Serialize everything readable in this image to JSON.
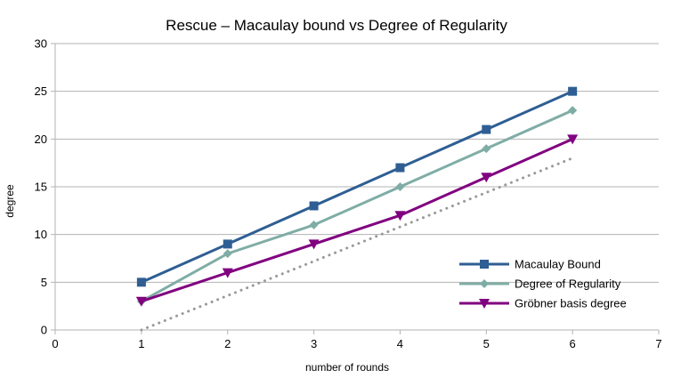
{
  "chart_data": {
    "type": "line",
    "title": "Rescue – Macaulay bound vs Degree of Regularity",
    "xlabel": "number of rounds",
    "ylabel": "degree",
    "xlim": [
      0,
      7
    ],
    "ylim": [
      0,
      30
    ],
    "xticks": [
      0,
      1,
      2,
      3,
      4,
      5,
      6,
      7
    ],
    "yticks": [
      0,
      5,
      10,
      15,
      20,
      25,
      30
    ],
    "grid": "horizontal",
    "legend_position": "bottom-right",
    "series": [
      {
        "name": "Macaulay Bound",
        "color": "#2e5e93",
        "marker": "square",
        "x": [
          1,
          2,
          3,
          4,
          5,
          6
        ],
        "values": [
          5,
          9,
          13,
          17,
          21,
          25
        ]
      },
      {
        "name": "Degree of Regularity",
        "color": "#7fada5",
        "marker": "diamond",
        "x": [
          1,
          2,
          3,
          4,
          5,
          6
        ],
        "values": [
          3,
          8,
          11,
          15,
          19,
          23
        ]
      },
      {
        "name": "Gröbner basis degree",
        "color": "#800080",
        "marker": "triangle-down",
        "x": [
          1,
          2,
          3,
          4,
          5,
          6
        ],
        "values": [
          3,
          6,
          9,
          12,
          16,
          20
        ]
      }
    ],
    "trendline": {
      "color": "#999999",
      "style": "dotted",
      "x": [
        1,
        6
      ],
      "values": [
        0,
        18
      ]
    }
  }
}
